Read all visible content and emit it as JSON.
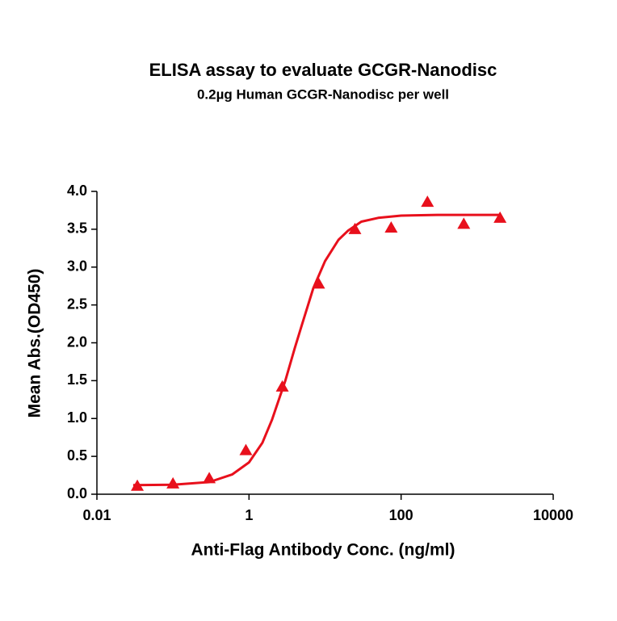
{
  "chart_data": {
    "type": "scatter",
    "title": "ELISA assay to evaluate GCGR-Nanodisc",
    "subtitle": "0.2µg Human GCGR-Nanodisc per well",
    "x_label": "Anti-Flag Antibody Conc. (ng/ml)",
    "y_label": "Mean Abs.(OD450)",
    "x_scale": "log",
    "xlim": [
      0.01,
      10000
    ],
    "xticks": [
      0.01,
      1,
      100,
      10000
    ],
    "ylim": [
      0,
      4
    ],
    "yticks": [
      {
        "value": 0,
        "label": "0.0"
      },
      {
        "value": 0.5,
        "label": "0.5"
      },
      {
        "value": 1,
        "label": "1.0"
      },
      {
        "value": 1.5,
        "label": "1.5"
      },
      {
        "value": 2,
        "label": "2.0"
      },
      {
        "value": 2.5,
        "label": "2.5"
      },
      {
        "value": 3,
        "label": "3.0"
      },
      {
        "value": 3.5,
        "label": "3.5"
      },
      {
        "value": 4,
        "label": "4.0"
      }
    ],
    "color": "#e8101c",
    "x": [
      0.034,
      0.1,
      0.3,
      0.91,
      2.74,
      8.23,
      24.7,
      74,
      222,
      667,
      2000
    ],
    "values": [
      0.11,
      0.14,
      0.21,
      0.58,
      1.42,
      2.78,
      3.5,
      3.52,
      3.86,
      3.57,
      3.65
    ],
    "curve": {
      "x": [
        0.03,
        0.1,
        0.3,
        0.6,
        1,
        1.5,
        2,
        3,
        4,
        5,
        7,
        10,
        15,
        20,
        30,
        50,
        100,
        300,
        1000,
        2000
      ],
      "values": [
        0.12,
        0.125,
        0.16,
        0.26,
        0.42,
        0.68,
        0.98,
        1.5,
        1.93,
        2.25,
        2.72,
        3.08,
        3.36,
        3.48,
        3.6,
        3.65,
        3.68,
        3.69,
        3.69,
        3.69
      ]
    }
  }
}
